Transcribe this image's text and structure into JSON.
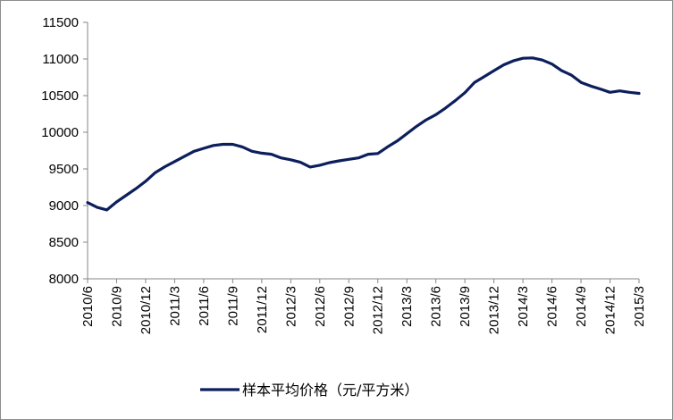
{
  "chart_data": {
    "type": "line",
    "title": "",
    "xlabel": "",
    "ylabel": "",
    "ylim": [
      8000,
      11500
    ],
    "yticks": [
      8000,
      8500,
      9000,
      9500,
      10000,
      10500,
      11000,
      11500
    ],
    "x_tick_labels": [
      "2010/6",
      "2010/9",
      "2010/12",
      "2011/3",
      "2011/6",
      "2011/9",
      "2011/12",
      "2012/3",
      "2012/6",
      "2012/9",
      "2012/12",
      "2013/3",
      "2013/6",
      "2013/9",
      "2013/12",
      "2014/3",
      "2014/6",
      "2014/9",
      "2014/12",
      "2015/3"
    ],
    "grid": false,
    "legend_position": "bottom",
    "line_color": "#0c1f5c",
    "series": [
      {
        "name": "样本平均价格（元/平方米）",
        "values": [
          9040,
          8975,
          8940,
          9050,
          9140,
          9230,
          9330,
          9450,
          9530,
          9600,
          9670,
          9740,
          9780,
          9820,
          9835,
          9835,
          9800,
          9740,
          9715,
          9700,
          9650,
          9625,
          9590,
          9525,
          9550,
          9585,
          9610,
          9630,
          9650,
          9700,
          9710,
          9800,
          9880,
          9980,
          10080,
          10170,
          10240,
          10330,
          10430,
          10540,
          10680,
          10760,
          10840,
          10920,
          10975,
          11010,
          11015,
          10985,
          10930,
          10840,
          10780,
          10680,
          10630,
          10590,
          10545,
          10565,
          10545,
          10530
        ]
      }
    ]
  }
}
